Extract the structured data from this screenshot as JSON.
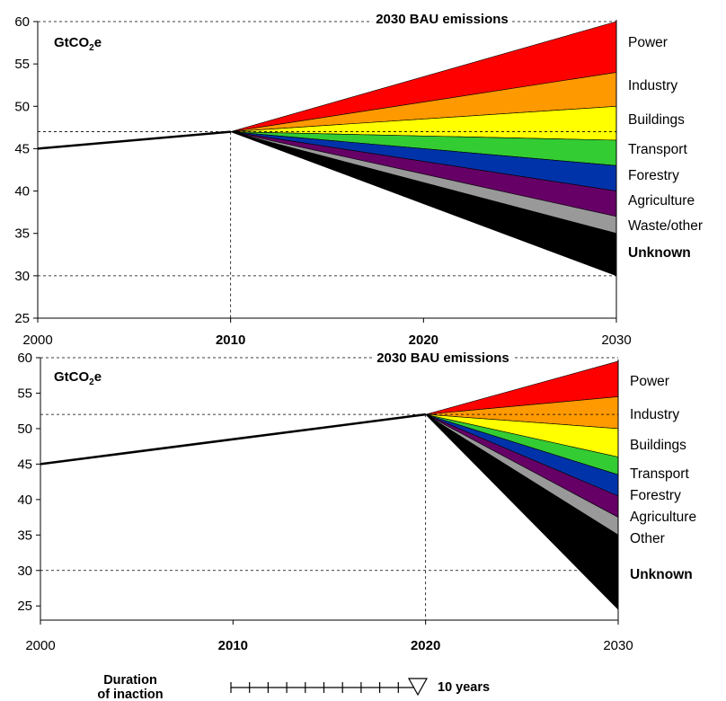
{
  "chart_data": [
    {
      "type": "area",
      "unit": "GtCO",
      "unit_sub": "2",
      "unit_tail": "e",
      "annotation": "2030 BAU emissions",
      "xlim": [
        2000,
        2030
      ],
      "ylim": [
        25,
        60
      ],
      "x_ticks": [
        2000,
        2010,
        2020,
        2030
      ],
      "x_ticks_bold": [
        2010,
        2020
      ],
      "y_ticks": [
        25,
        30,
        35,
        40,
        45,
        50,
        55,
        60
      ],
      "history": {
        "x": [
          2000,
          2010
        ],
        "y": [
          45,
          47
        ]
      },
      "split": {
        "x": 2010,
        "y": 47
      },
      "guides_y": [
        47,
        30
      ],
      "bands": [
        {
          "name": "Power",
          "top": 60,
          "bottom": 54,
          "color": "#ff0000",
          "bold": false
        },
        {
          "name": "Industry",
          "top": 54,
          "bottom": 50,
          "color": "#ff9900",
          "bold": false
        },
        {
          "name": "Buildings",
          "top": 50,
          "bottom": 46,
          "color": "#ffff00",
          "bold": false
        },
        {
          "name": "Transport",
          "top": 46,
          "bottom": 43,
          "color": "#33cc33",
          "bold": false
        },
        {
          "name": "Forestry",
          "top": 43,
          "bottom": 40,
          "color": "#0033aa",
          "bold": false
        },
        {
          "name": "Agriculture",
          "top": 40,
          "bottom": 37,
          "color": "#660066",
          "bold": false
        },
        {
          "name": "Waste/other",
          "top": 37,
          "bottom": 35,
          "color": "#999999",
          "bold": false
        },
        {
          "name": "Unknown",
          "top": 35,
          "bottom": 30,
          "color": "#000000",
          "bold": true
        }
      ]
    },
    {
      "type": "area",
      "unit": "GtCO",
      "unit_sub": "2",
      "unit_tail": "e",
      "annotation": "2030 BAU emissions",
      "xlim": [
        2000,
        2030
      ],
      "ylim": [
        23,
        60
      ],
      "x_ticks": [
        2000,
        2010,
        2020,
        2030
      ],
      "x_ticks_bold": [
        2010,
        2020
      ],
      "y_ticks": [
        25,
        30,
        35,
        40,
        45,
        50,
        55,
        60
      ],
      "history": {
        "x": [
          2000,
          2020
        ],
        "y": [
          45,
          52
        ]
      },
      "split": {
        "x": 2020,
        "y": 52
      },
      "guides_y": [
        52,
        30
      ],
      "bands": [
        {
          "name": "Power",
          "top": 59.5,
          "bottom": 54.5,
          "color": "#ff0000",
          "bold": false
        },
        {
          "name": "Industry",
          "top": 54.5,
          "bottom": 50.0,
          "color": "#ff9900",
          "bold": false
        },
        {
          "name": "Buildings",
          "top": 50.0,
          "bottom": 46.0,
          "color": "#ffff00",
          "bold": false
        },
        {
          "name": "Transport",
          "top": 46.0,
          "bottom": 43.5,
          "color": "#33cc33",
          "bold": false
        },
        {
          "name": "Forestry",
          "top": 43.5,
          "bottom": 40.5,
          "color": "#0033aa",
          "bold": false
        },
        {
          "name": "Agriculture",
          "top": 40.5,
          "bottom": 37.5,
          "color": "#660066",
          "bold": false
        },
        {
          "name": "Other",
          "top": 37.5,
          "bottom": 35.0,
          "color": "#999999",
          "bold": false
        },
        {
          "name": "Unknown",
          "top": 35.0,
          "bottom": 24.5,
          "color": "#000000",
          "bold": true
        }
      ]
    }
  ],
  "inaction": {
    "label_line1": "Duration",
    "label_line2": "of inaction",
    "value_label": "10 years",
    "years": 10
  }
}
